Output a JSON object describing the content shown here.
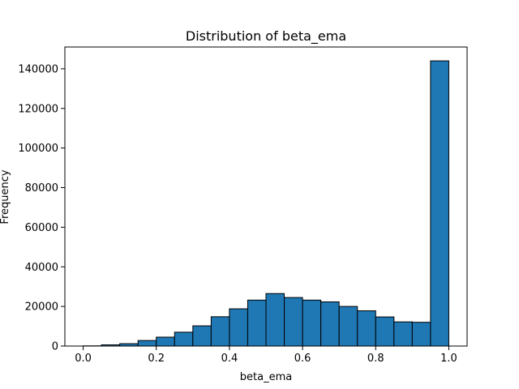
{
  "chart_data": {
    "type": "bar",
    "title": "Distribution of beta_ema",
    "xlabel": "beta_ema",
    "ylabel": "Frequency",
    "xlim": [
      -0.05,
      1.05
    ],
    "ylim": [
      0,
      151000
    ],
    "xticks": [
      0.0,
      0.2,
      0.4,
      0.6,
      0.8,
      1.0
    ],
    "xtick_labels": [
      "0.0",
      "0.2",
      "0.4",
      "0.6",
      "0.8",
      "1.0"
    ],
    "yticks": [
      0,
      20000,
      40000,
      60000,
      80000,
      100000,
      120000,
      140000
    ],
    "ytick_labels": [
      "0",
      "20000",
      "40000",
      "60000",
      "80000",
      "100000",
      "120000",
      "140000"
    ],
    "bin_edges": [
      0.0,
      0.05,
      0.1,
      0.15,
      0.2,
      0.25,
      0.3,
      0.35,
      0.4,
      0.45,
      0.5,
      0.55,
      0.6,
      0.65,
      0.7,
      0.75,
      0.8,
      0.85,
      0.9,
      0.95,
      1.0
    ],
    "values": [
      100,
      600,
      1200,
      2800,
      4500,
      7000,
      10200,
      14800,
      18800,
      23200,
      26500,
      24500,
      23200,
      22300,
      20000,
      17800,
      14700,
      12200,
      12000,
      144000
    ],
    "bar_color": "#1f77b4",
    "edge_color": "#000000",
    "grid": false
  }
}
